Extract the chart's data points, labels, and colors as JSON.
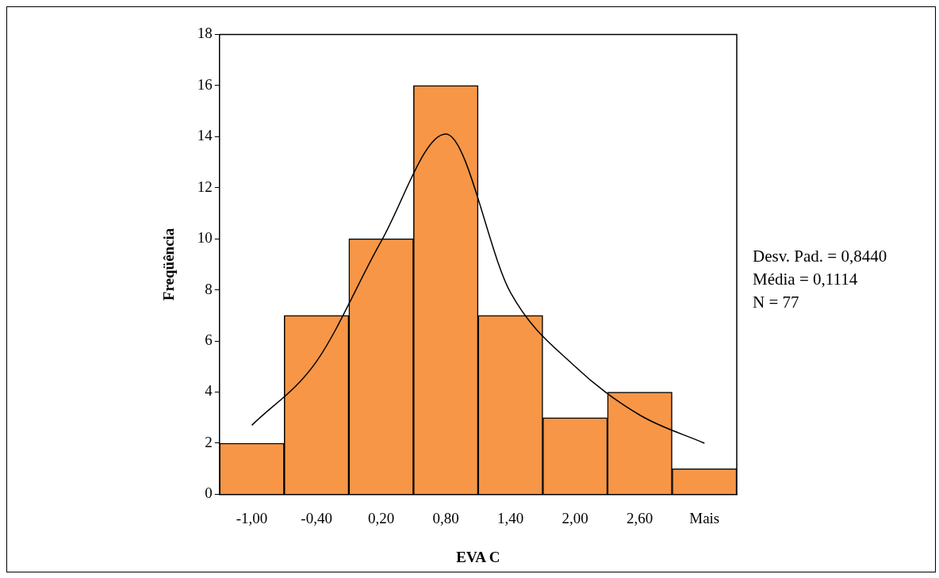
{
  "chart_data": {
    "type": "bar",
    "xlabel": "EVA C",
    "ylabel": "Freqüência",
    "categories": [
      "-1,00",
      "-0,40",
      "0,20",
      "0,80",
      "1,40",
      "2,00",
      "2,60",
      "Mais"
    ],
    "series": [
      {
        "color": "#f79646",
        "values": [
          2,
          7,
          10,
          16,
          7,
          3,
          4,
          1
        ]
      },
      {
        "type": "line",
        "color": "#000000",
        "values": [
          2.7,
          5.2,
          9.9,
          14.1,
          7.9,
          5.0,
          3.1,
          2.0
        ]
      }
    ],
    "ylim": [
      0,
      18
    ],
    "yticks": [
      0,
      2,
      4,
      6,
      8,
      10,
      12,
      14,
      16,
      18
    ],
    "grid": false,
    "legend": false,
    "marker": "none",
    "annotations": [
      "Desv. Pad. = 0,8440",
      "Média = 0,1114",
      "N = 77"
    ]
  }
}
